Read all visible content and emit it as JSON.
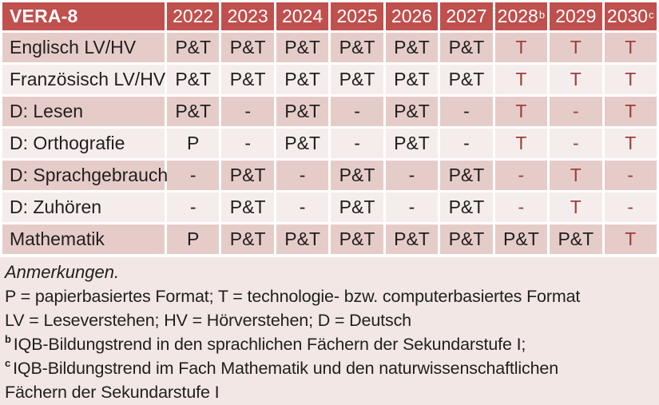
{
  "colors": {
    "headerBg": "#C0504D",
    "rowOdd": "#E6CCC9",
    "rowEven": "#F5EDEC",
    "notesBg": "#F2E7E5",
    "redText": "#9E3D39",
    "darkText": "#1F1F1F"
  },
  "table": {
    "header": {
      "title": "VERA-8",
      "years": [
        {
          "label": "2022",
          "sup": ""
        },
        {
          "label": "2023",
          "sup": ""
        },
        {
          "label": "2024",
          "sup": ""
        },
        {
          "label": "2025",
          "sup": ""
        },
        {
          "label": "2026",
          "sup": ""
        },
        {
          "label": "2027",
          "sup": ""
        },
        {
          "label": "2028",
          "sup": "b"
        },
        {
          "label": "2029",
          "sup": ""
        },
        {
          "label": "2030",
          "sup": "c"
        }
      ]
    },
    "rows": [
      {
        "label": "Englisch LV/HV",
        "cells": [
          {
            "v": "P&T",
            "red": false
          },
          {
            "v": "P&T",
            "red": false
          },
          {
            "v": "P&T",
            "red": false
          },
          {
            "v": "P&T",
            "red": false
          },
          {
            "v": "P&T",
            "red": false
          },
          {
            "v": "P&T",
            "red": false
          },
          {
            "v": "T",
            "red": true
          },
          {
            "v": "T",
            "red": true
          },
          {
            "v": "T",
            "red": true
          }
        ]
      },
      {
        "label": "Französisch LV/HV",
        "cells": [
          {
            "v": "P&T",
            "red": false
          },
          {
            "v": "P&T",
            "red": false
          },
          {
            "v": "P&T",
            "red": false
          },
          {
            "v": "P&T",
            "red": false
          },
          {
            "v": "P&T",
            "red": false
          },
          {
            "v": "P&T",
            "red": false
          },
          {
            "v": "T",
            "red": true
          },
          {
            "v": "T",
            "red": true
          },
          {
            "v": "T",
            "red": true
          }
        ]
      },
      {
        "label": "D: Lesen",
        "cells": [
          {
            "v": "P&T",
            "red": false
          },
          {
            "v": "-",
            "red": false
          },
          {
            "v": "P&T",
            "red": false
          },
          {
            "v": "-",
            "red": false
          },
          {
            "v": "P&T",
            "red": false
          },
          {
            "v": "-",
            "red": false
          },
          {
            "v": "T",
            "red": true
          },
          {
            "v": "-",
            "red": true
          },
          {
            "v": "T",
            "red": true
          }
        ]
      },
      {
        "label": "D: Orthografie",
        "cells": [
          {
            "v": "P",
            "red": false
          },
          {
            "v": "-",
            "red": false
          },
          {
            "v": "P&T",
            "red": false
          },
          {
            "v": "-",
            "red": false
          },
          {
            "v": "P&T",
            "red": false
          },
          {
            "v": "-",
            "red": false
          },
          {
            "v": "T",
            "red": true
          },
          {
            "v": "-",
            "red": true
          },
          {
            "v": "T",
            "red": true
          }
        ]
      },
      {
        "label": "D: Sprachgebrauch",
        "cells": [
          {
            "v": "-",
            "red": false
          },
          {
            "v": "P&T",
            "red": false
          },
          {
            "v": "-",
            "red": false
          },
          {
            "v": "P&T",
            "red": false
          },
          {
            "v": "-",
            "red": false
          },
          {
            "v": "P&T",
            "red": false
          },
          {
            "v": "-",
            "red": true
          },
          {
            "v": "T",
            "red": true
          },
          {
            "v": "-",
            "red": true
          }
        ]
      },
      {
        "label": "D: Zuhören",
        "cells": [
          {
            "v": "-",
            "red": false
          },
          {
            "v": "P&T",
            "red": false
          },
          {
            "v": "-",
            "red": false
          },
          {
            "v": "P&T",
            "red": false
          },
          {
            "v": "-",
            "red": false
          },
          {
            "v": "P&T",
            "red": false
          },
          {
            "v": "-",
            "red": true
          },
          {
            "v": "T",
            "red": true
          },
          {
            "v": "-",
            "red": true
          }
        ]
      },
      {
        "label": "Mathematik",
        "cells": [
          {
            "v": "P",
            "red": false
          },
          {
            "v": "P&T",
            "red": false
          },
          {
            "v": "P&T",
            "red": false
          },
          {
            "v": "P&T",
            "red": false
          },
          {
            "v": "P&T",
            "red": false
          },
          {
            "v": "P&T",
            "red": false
          },
          {
            "v": "P&T",
            "red": false
          },
          {
            "v": "P&T",
            "red": false
          },
          {
            "v": "T",
            "red": true
          }
        ]
      }
    ]
  },
  "notes": {
    "heading": "Anmerkungen.",
    "lines": [
      {
        "sup": "",
        "text": "P = papierbasiertes Format; T = technologie- bzw. computerbasiertes Format"
      },
      {
        "sup": "",
        "text": "LV = Leseverstehen; HV = Hörverstehen; D = Deutsch"
      },
      {
        "sup": "b",
        "text": "IQB-Bildungstrend in den sprachlichen Fächern der Sekundarstufe I;"
      },
      {
        "sup": "c",
        "text": "IQB-Bildungstrend im Fach Mathematik und den naturwissenschaftlichen\nFächern der Sekundarstufe I"
      }
    ]
  }
}
